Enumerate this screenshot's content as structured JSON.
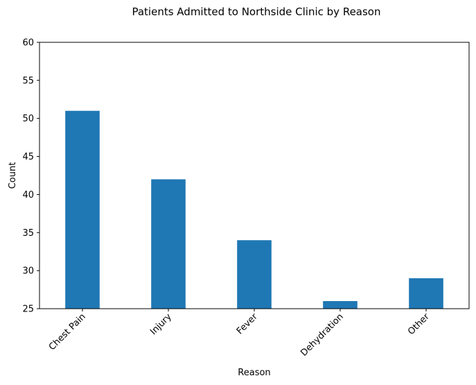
{
  "chart_data": {
    "type": "bar",
    "title": "Patients Admitted to Northside Clinic by Reason",
    "xlabel": "Reason",
    "ylabel": "Count",
    "categories": [
      "Chest Pain",
      "Injury",
      "Fever",
      "Dehydration",
      "Other"
    ],
    "values": [
      51,
      42,
      34,
      26,
      29
    ],
    "ylim": [
      25,
      60
    ],
    "yticks": [
      25,
      30,
      35,
      40,
      45,
      50,
      55,
      60
    ],
    "bar_color": "#1f77b4",
    "grid": false,
    "legend": "none"
  }
}
